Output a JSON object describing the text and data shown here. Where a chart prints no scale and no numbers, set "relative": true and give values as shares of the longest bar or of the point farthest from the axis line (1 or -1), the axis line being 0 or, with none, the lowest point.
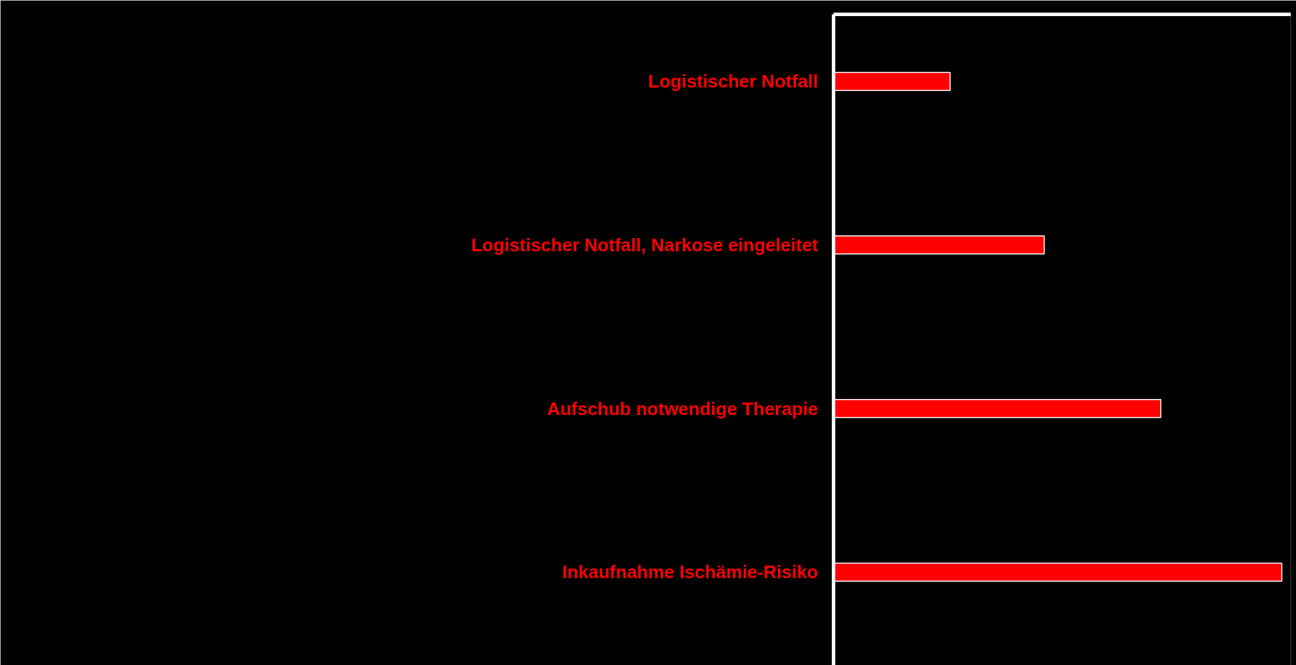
{
  "chart_data": {
    "type": "bar",
    "orientation": "horizontal",
    "relative": true,
    "categories": [
      "Logistischer Notfall",
      "Logistischer Notfall, Narkose eingeleitet",
      "Aufschub notwendige Therapie",
      "Inkaufnahme Ischämie-Risiko"
    ],
    "series": [
      {
        "color": "#ff0000",
        "values": [
          0.26,
          0.47,
          0.73,
          1
        ]
      }
    ]
  }
}
